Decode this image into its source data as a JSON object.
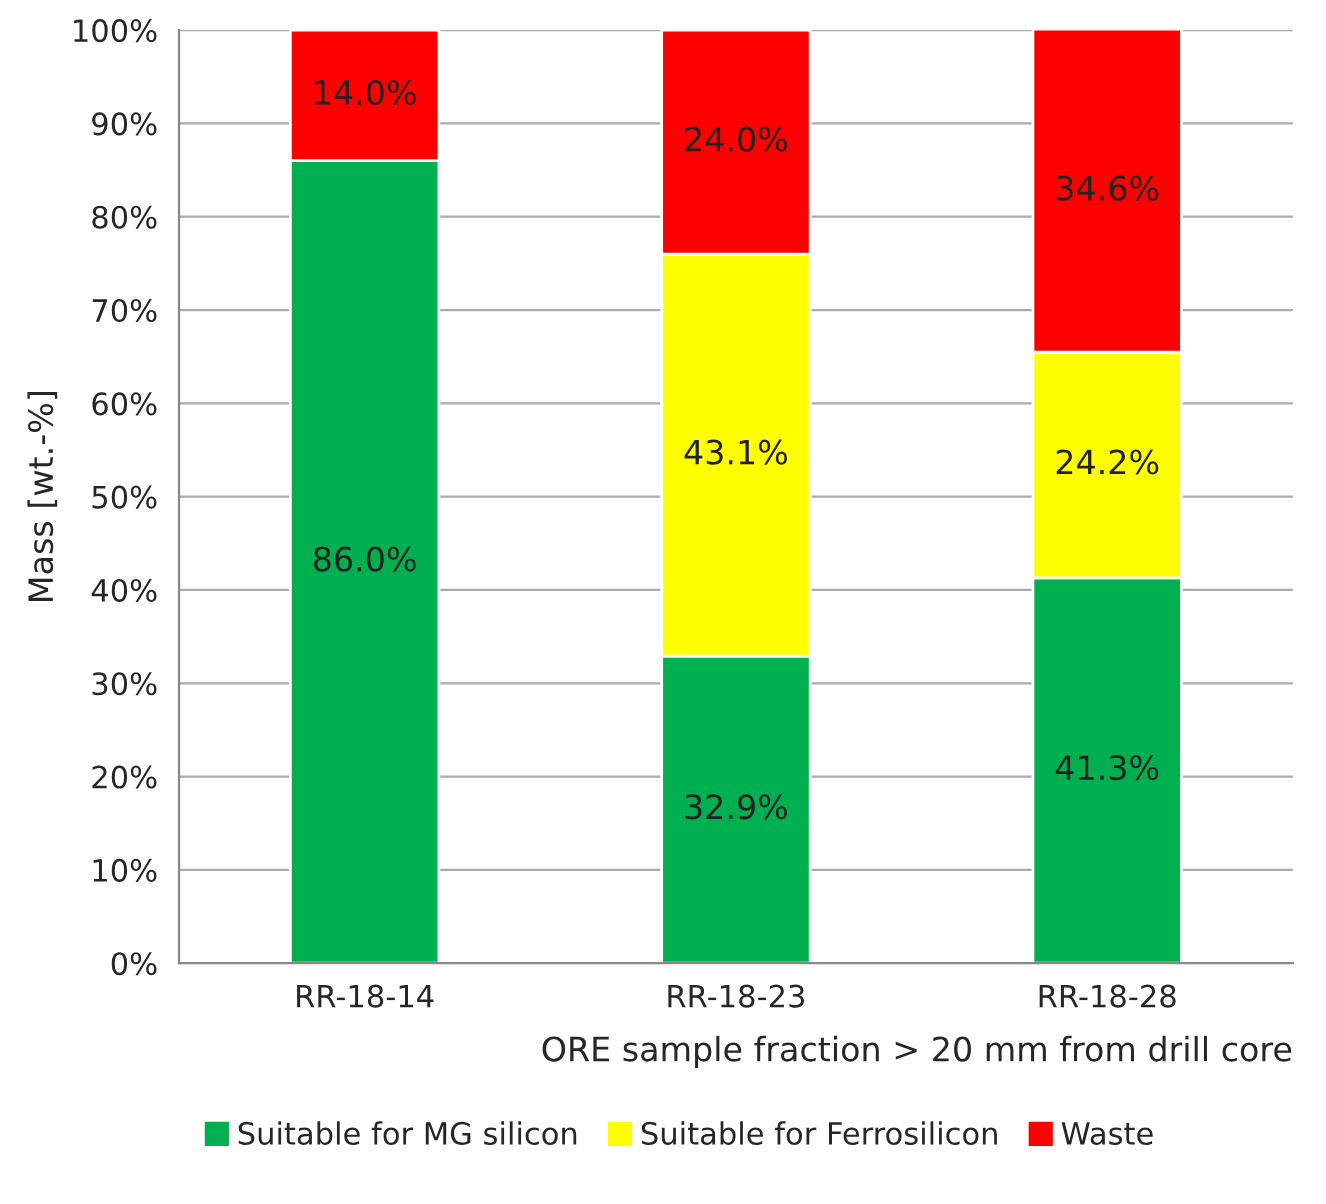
{
  "chart_data": {
    "type": "bar",
    "stacked": true,
    "xlabel": "ORE sample fraction > 20 mm from drill core",
    "ylabel": "Mass [wt.-%]",
    "categories": [
      "RR-18-14",
      "RR-18-23",
      "RR-18-28"
    ],
    "series": [
      {
        "name": "Suitable for MG silicon",
        "color": "#00b050",
        "values": [
          86.0,
          32.9,
          41.3
        ],
        "value_labels": [
          "86.0%",
          "32.9%",
          "41.3%"
        ]
      },
      {
        "name": "Suitable for Ferrosilicon",
        "color": "#ffff00",
        "values": [
          null,
          43.1,
          24.2
        ],
        "value_labels": [
          null,
          "43.1%",
          "24.2%"
        ]
      },
      {
        "name": "Waste",
        "color": "#ff0000",
        "values": [
          14.0,
          24.0,
          34.6
        ],
        "value_labels": [
          "14.0%",
          "24.0%",
          "34.6%"
        ]
      }
    ],
    "ylim": [
      0,
      100
    ],
    "yticks": [
      {
        "value": 0,
        "label": "0%"
      },
      {
        "value": 10,
        "label": "10%"
      },
      {
        "value": 20,
        "label": "20%"
      },
      {
        "value": 30,
        "label": "30%"
      },
      {
        "value": 40,
        "label": "40%"
      },
      {
        "value": 50,
        "label": "50%"
      },
      {
        "value": 60,
        "label": "60%"
      },
      {
        "value": 70,
        "label": "70%"
      },
      {
        "value": 80,
        "label": "80%"
      },
      {
        "value": 90,
        "label": "90%"
      },
      {
        "value": 100,
        "label": "100%"
      }
    ],
    "grid": "y",
    "legend": "bottom"
  }
}
